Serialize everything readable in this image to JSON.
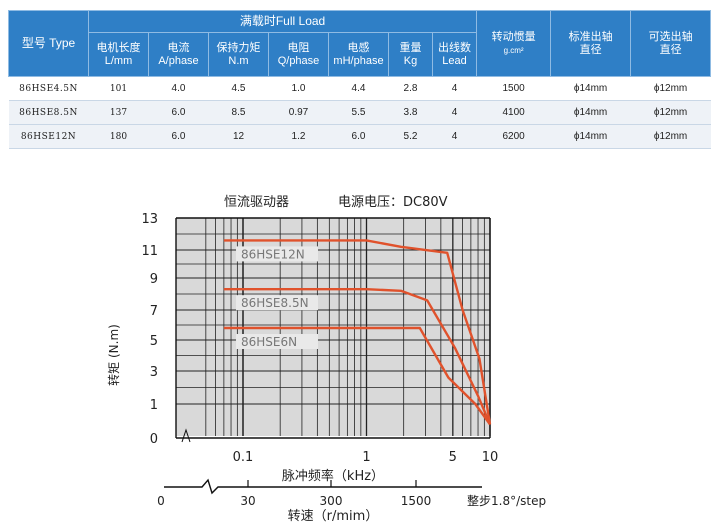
{
  "table": {
    "title": "满载时Full Load",
    "model_header": "型号 Type",
    "inertia_header": "转动惯量",
    "inertia_unit": "g.cm²",
    "std_shaft_header_1": "标准出轴",
    "std_shaft_header_2": "直径",
    "opt_shaft_header_1": "可选出轴",
    "opt_shaft_header_2": "直径",
    "columns": [
      {
        "name": "电机长度",
        "unit": "L/mm"
      },
      {
        "name": "电流",
        "unit": "A/phase"
      },
      {
        "name": "保持力矩",
        "unit": "N.m"
      },
      {
        "name": "电阻",
        "unit": "Q/phase"
      },
      {
        "name": "电感",
        "unit": "mH/phase"
      },
      {
        "name": "重量",
        "unit": "Kg"
      },
      {
        "name": "出线数",
        "unit": "Lead"
      }
    ],
    "rows": [
      {
        "model": "86HSE4.5N",
        "length": "101",
        "current": "4.0",
        "torque": "4.5",
        "resistance": "1.0",
        "inductance": "4.4",
        "weight": "2.8",
        "leads": "4",
        "inertia": "1500",
        "std_shaft": "ϕ14mm",
        "opt_shaft": "ϕ12mm"
      },
      {
        "model": "86HSE8.5N",
        "length": "137",
        "current": "6.0",
        "torque": "8.5",
        "resistance": "0.97",
        "inductance": "5.5",
        "weight": "3.8",
        "leads": "4",
        "inertia": "4100",
        "std_shaft": "ϕ14mm",
        "opt_shaft": "ϕ12mm"
      },
      {
        "model": "86HSE12N",
        "length": "180",
        "current": "6.0",
        "torque": "12",
        "resistance": "1.2",
        "inductance": "6.0",
        "weight": "5.2",
        "leads": "4",
        "inertia": "6200",
        "std_shaft": "ϕ14mm",
        "opt_shaft": "ϕ12mm"
      }
    ]
  },
  "chart_data": {
    "type": "line",
    "title_left": "恒流驱动器",
    "title_right": "电源电压：DC80V",
    "ylabel": "转矩 (N.m)",
    "xlabel": "脉冲频率（kHz）",
    "x2label": "转速（r/mim）",
    "x_scale": "log",
    "x_ticks": [
      "0.1",
      "1",
      "5",
      "10"
    ],
    "x_tick_values": [
      0.1,
      1,
      5,
      10
    ],
    "y_ticks": [
      "0",
      "1",
      "3",
      "5",
      "7",
      "9",
      "11",
      "13"
    ],
    "y_tick_values": [
      0,
      1,
      3,
      5,
      7,
      9,
      11,
      13
    ],
    "ylim": [
      0,
      13
    ],
    "x2_ticks": [
      "0",
      "30",
      "300",
      "1500"
    ],
    "x2_note": "整步1.8°/step",
    "grid": true,
    "line_color": "#e0522c",
    "series": [
      {
        "name": "86HSE12N",
        "x": [
          0.07,
          1.0,
          1.9,
          4.5,
          6.0,
          8.2,
          10.0
        ],
        "y": [
          11.6,
          11.6,
          11.2,
          10.8,
          7.0,
          3.8,
          0.4
        ]
      },
      {
        "name": "86HSE8.5N",
        "x": [
          0.07,
          1.0,
          1.9,
          3.1,
          5.2,
          8.0,
          10.0
        ],
        "y": [
          8.3,
          8.3,
          8.2,
          7.6,
          4.5,
          1.5,
          0.4
        ]
      },
      {
        "name": "86HSE6N",
        "x": [
          0.07,
          1.0,
          1.5,
          2.7,
          4.6,
          7.6,
          10.0
        ],
        "y": [
          5.8,
          5.8,
          5.8,
          5.8,
          2.6,
          1.0,
          0.4
        ]
      }
    ]
  }
}
